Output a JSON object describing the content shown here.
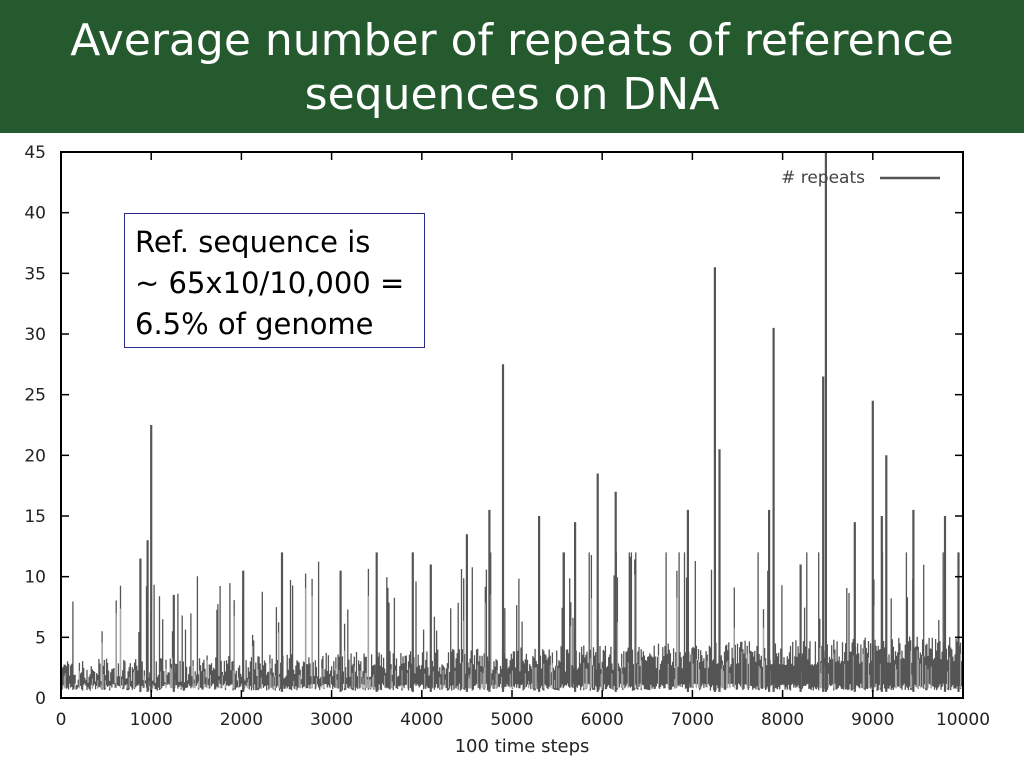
{
  "slide": {
    "title": "Average number of repeats of reference sequences on DNA"
  },
  "annotation": {
    "lines": [
      "Ref. sequence is",
      "~ 65x10/10,000 =",
      "6.5% of genome"
    ]
  },
  "chart_data": {
    "type": "line",
    "xlabel": "100 time steps",
    "ylabel": "",
    "xlim": [
      0,
      10000
    ],
    "ylim": [
      0,
      45
    ],
    "xticks": [
      0,
      1000,
      2000,
      3000,
      4000,
      5000,
      6000,
      7000,
      8000,
      9000,
      10000
    ],
    "yticks": [
      0,
      5,
      10,
      15,
      20,
      25,
      30,
      35,
      40,
      45
    ],
    "xtick_labels": [
      "0",
      "1000",
      "2000",
      "3000",
      "4000",
      "5000",
      "6000",
      "7000",
      "8000",
      "9000",
      "10000"
    ],
    "ytick_labels": [
      "0",
      "5",
      "10",
      "15",
      "20",
      "25",
      "30",
      "35",
      "40",
      "45"
    ],
    "grid": false,
    "legend_position": "top-right",
    "colors": {
      "series": "#555555",
      "title_bar": "#245a2e",
      "annotation_border": "#2a2a8a"
    },
    "series": [
      {
        "name": "# repeats",
        "peaks": [
          {
            "x": 1000,
            "y": 22.5
          },
          {
            "x": 960,
            "y": 13
          },
          {
            "x": 880,
            "y": 11.5
          },
          {
            "x": 1250,
            "y": 8.5
          },
          {
            "x": 2020,
            "y": 10.5
          },
          {
            "x": 2450,
            "y": 12
          },
          {
            "x": 3100,
            "y": 10.5
          },
          {
            "x": 3500,
            "y": 12
          },
          {
            "x": 3900,
            "y": 12
          },
          {
            "x": 4100,
            "y": 11
          },
          {
            "x": 4500,
            "y": 13.5
          },
          {
            "x": 4750,
            "y": 15.5
          },
          {
            "x": 4900,
            "y": 27.5
          },
          {
            "x": 5300,
            "y": 15
          },
          {
            "x": 5700,
            "y": 14.5
          },
          {
            "x": 5950,
            "y": 18.5
          },
          {
            "x": 6150,
            "y": 17
          },
          {
            "x": 6950,
            "y": 15.5
          },
          {
            "x": 7250,
            "y": 35.5
          },
          {
            "x": 7300,
            "y": 20.5
          },
          {
            "x": 7850,
            "y": 15.5
          },
          {
            "x": 7900,
            "y": 30.5
          },
          {
            "x": 8200,
            "y": 11
          },
          {
            "x": 8450,
            "y": 26.5
          },
          {
            "x": 8480,
            "y": 45
          },
          {
            "x": 8800,
            "y": 14.5
          },
          {
            "x": 9000,
            "y": 24.5
          },
          {
            "x": 9100,
            "y": 15
          },
          {
            "x": 9150,
            "y": 20
          },
          {
            "x": 9450,
            "y": 15.5
          },
          {
            "x": 9800,
            "y": 15
          },
          {
            "x": 9950,
            "y": 12
          }
        ]
      }
    ]
  }
}
